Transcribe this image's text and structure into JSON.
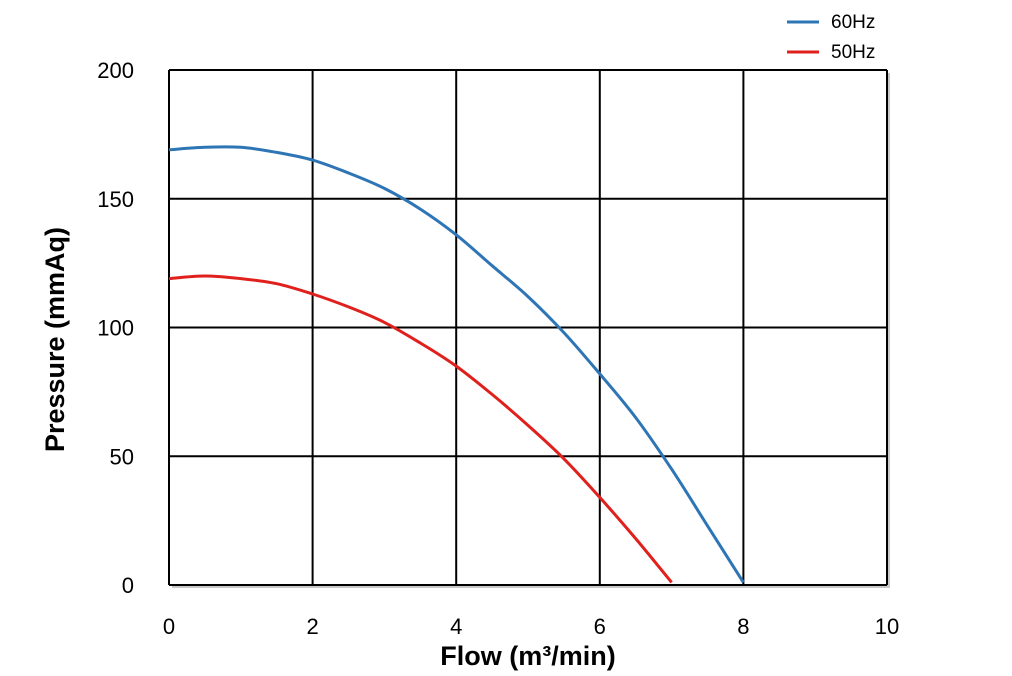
{
  "chart_data": {
    "type": "line",
    "title": "",
    "xlabel": "Flow (m³/min)",
    "ylabel": "Pressure (mmAq)",
    "xlim": [
      0,
      10
    ],
    "ylim": [
      0,
      200
    ],
    "xticks": [
      0,
      2,
      4,
      6,
      8,
      10
    ],
    "yticks": [
      0,
      50,
      100,
      150,
      200
    ],
    "xtick_labels": [
      "0",
      "2",
      "4",
      "6",
      "8",
      "10"
    ],
    "ytick_labels": [
      "0",
      "50",
      "100",
      "150",
      "200"
    ],
    "grid": true,
    "legend_position": "top-right, above plot",
    "series": [
      {
        "name": "60Hz",
        "color": "#2e75b6",
        "x": [
          0,
          0.5,
          1,
          1.5,
          2,
          2.5,
          3,
          3.5,
          4,
          4.5,
          5,
          5.5,
          6,
          6.5,
          7,
          7.5,
          8
        ],
        "y": [
          169,
          170,
          170,
          168,
          165,
          160,
          154,
          146,
          136,
          124,
          112,
          98,
          82,
          65,
          45,
          23,
          1
        ]
      },
      {
        "name": "50Hz",
        "color": "#e0201c",
        "x": [
          0,
          0.5,
          1,
          1.5,
          2,
          2.5,
          3,
          3.5,
          4,
          4.5,
          5,
          5.5,
          6,
          6.5,
          7
        ],
        "y": [
          119,
          120,
          119,
          117,
          113,
          108,
          102,
          94,
          85,
          74,
          62,
          49,
          34,
          18,
          1
        ]
      }
    ]
  }
}
